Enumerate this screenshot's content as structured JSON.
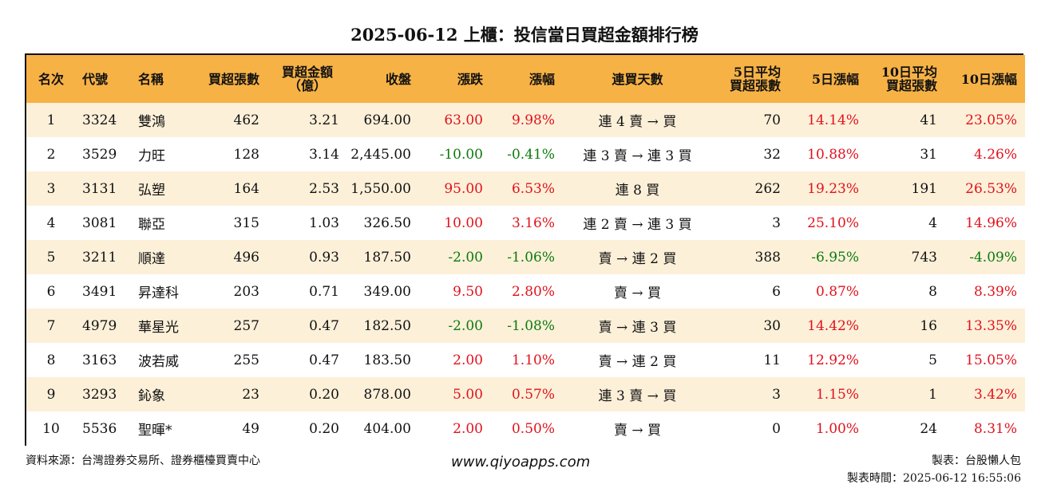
{
  "title": "2025-06-12 上櫃：投信當日買超金額排行榜",
  "headers": {
    "rank": "名次",
    "code": "代號",
    "name": "名稱",
    "net_buy_lots": "買超張數",
    "net_buy_amount_line1": "買超金額",
    "net_buy_amount_line2": "（億）",
    "close": "收盤",
    "change": "漲跌",
    "change_pct": "漲幅",
    "streak": "連買天數",
    "avg5_line1": "5日平均",
    "avg5_line2": "買超張數",
    "pct5": "5日漲幅",
    "avg10_line1": "10日平均",
    "avg10_line2": "買超張數",
    "pct10": "10日漲幅"
  },
  "rows": [
    {
      "rank": "1",
      "code": "3324",
      "name": "雙鴻",
      "lots": "462",
      "amount": "3.21",
      "close": "694.00",
      "change": "63.00",
      "pct": "9.98%",
      "streak": "連 4 賣 → 買",
      "avg5": "70",
      "pct5": "14.14%",
      "avg10": "41",
      "pct10": "23.05%"
    },
    {
      "rank": "2",
      "code": "3529",
      "name": "力旺",
      "lots": "128",
      "amount": "3.14",
      "close": "2,445.00",
      "change": "-10.00",
      "pct": "-0.41%",
      "streak": "連 3 賣 → 連 3 買",
      "avg5": "32",
      "pct5": "10.88%",
      "avg10": "31",
      "pct10": "4.26%"
    },
    {
      "rank": "3",
      "code": "3131",
      "name": "弘塑",
      "lots": "164",
      "amount": "2.53",
      "close": "1,550.00",
      "change": "95.00",
      "pct": "6.53%",
      "streak": "連 8 買",
      "avg5": "262",
      "pct5": "19.23%",
      "avg10": "191",
      "pct10": "26.53%"
    },
    {
      "rank": "4",
      "code": "3081",
      "name": "聯亞",
      "lots": "315",
      "amount": "1.03",
      "close": "326.50",
      "change": "10.00",
      "pct": "3.16%",
      "streak": "連 2 賣 → 連 3 買",
      "avg5": "3",
      "pct5": "25.10%",
      "avg10": "4",
      "pct10": "14.96%"
    },
    {
      "rank": "5",
      "code": "3211",
      "name": "順達",
      "lots": "496",
      "amount": "0.93",
      "close": "187.50",
      "change": "-2.00",
      "pct": "-1.06%",
      "streak": "賣 → 連 2 買",
      "avg5": "388",
      "pct5": "-6.95%",
      "avg10": "743",
      "pct10": "-4.09%"
    },
    {
      "rank": "6",
      "code": "3491",
      "name": "昇達科",
      "lots": "203",
      "amount": "0.71",
      "close": "349.00",
      "change": "9.50",
      "pct": "2.80%",
      "streak": "賣 → 買",
      "avg5": "6",
      "pct5": "0.87%",
      "avg10": "8",
      "pct10": "8.39%"
    },
    {
      "rank": "7",
      "code": "4979",
      "name": "華星光",
      "lots": "257",
      "amount": "0.47",
      "close": "182.50",
      "change": "-2.00",
      "pct": "-1.08%",
      "streak": "賣 → 連 3 買",
      "avg5": "30",
      "pct5": "14.42%",
      "avg10": "16",
      "pct10": "13.35%"
    },
    {
      "rank": "8",
      "code": "3163",
      "name": "波若威",
      "lots": "255",
      "amount": "0.47",
      "close": "183.50",
      "change": "2.00",
      "pct": "1.10%",
      "streak": "賣 → 連 2 買",
      "avg5": "11",
      "pct5": "12.92%",
      "avg10": "5",
      "pct10": "15.05%"
    },
    {
      "rank": "9",
      "code": "3293",
      "name": "鈊象",
      "lots": "23",
      "amount": "0.20",
      "close": "878.00",
      "change": "5.00",
      "pct": "0.57%",
      "streak": "連 3 賣 → 買",
      "avg5": "3",
      "pct5": "1.15%",
      "avg10": "1",
      "pct10": "3.42%"
    },
    {
      "rank": "10",
      "code": "5536",
      "name": "聖暉*",
      "lots": "49",
      "amount": "0.20",
      "close": "404.00",
      "change": "2.00",
      "pct": "0.50%",
      "streak": "賣 → 買",
      "avg5": "0",
      "pct5": "1.00%",
      "avg10": "24",
      "pct10": "8.31%"
    }
  ],
  "colors": {
    "header_bg": "#f7b245",
    "stripe_bg": "#fdf0d9",
    "positive": "#e0121c",
    "negative": "#0c7a0c"
  },
  "footer": {
    "source": "資料來源：台灣證券交易所、證券櫃檯買賣中心",
    "site": "www.qiyoapps.com",
    "maker": "製表：台股懶人包",
    "time": "製表時間：2025-06-12 16:55:06"
  }
}
